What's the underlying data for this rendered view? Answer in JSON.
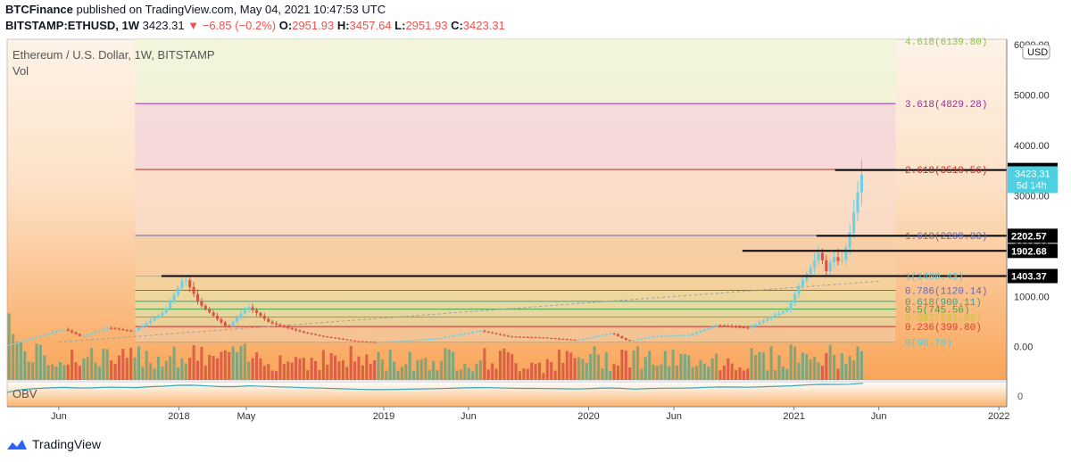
{
  "header": {
    "publisher": "BTCFinance",
    "published_text": "published on TradingView.com, May 04, 2021 10:47:53 UTC",
    "symbol": "BITSTAMP:ETHUSD, 1W",
    "last": "3423.31",
    "change": "−6.85 (−0.2%)",
    "o_label": "O:",
    "o_val": "2951.93",
    "h_label": "H:",
    "h_val": "3457.64",
    "l_label": "L:",
    "l_val": "2951.93",
    "c_label": "C:",
    "c_val": "3423.31"
  },
  "legend": {
    "title": "Ethereum / U.S. Dollar, 1W, BITSTAMP",
    "vol": "Vol",
    "obv": "OBV"
  },
  "currency_button": "USD",
  "brand": "TradingView",
  "colors": {
    "up": "#6ba583",
    "down": "#d75442",
    "up_candle": "#6cd1e8",
    "down_candle": "#d75442",
    "fib_cyan": "#4dd0e1",
    "obv": "#3aa7b8"
  },
  "chart_data": {
    "type": "candlestick",
    "title": "Ethereum / U.S. Dollar, 1W, BITSTAMP",
    "y_ticks": [
      "6000.00",
      "5000.00",
      "4000.00",
      "3000.00",
      "2000.00",
      "1000.00",
      "0.00"
    ],
    "y_range": [
      -200,
      6000
    ],
    "x_ticks": [
      {
        "label": "Jun",
        "date": "2017-06-01"
      },
      {
        "label": "2018",
        "date": "2018-01-01"
      },
      {
        "label": "May",
        "date": "2018-05-01"
      },
      {
        "label": "2019",
        "date": "2019-01-01"
      },
      {
        "label": "Jun",
        "date": "2019-06-01"
      },
      {
        "label": "2020",
        "date": "2020-01-01"
      },
      {
        "label": "Jun",
        "date": "2020-06-01"
      },
      {
        "label": "2021",
        "date": "2021-01-01"
      },
      {
        "label": "Jun",
        "date": "2021-06-01"
      },
      {
        "label": "2022",
        "date": "2022-01-01"
      }
    ],
    "x_range": [
      "2017-03-01",
      "2022-01-15"
    ],
    "fib_levels": [
      {
        "label": "4.618(6139.80)",
        "value": 6139.8
      },
      {
        "label": "3.618(4829.28)",
        "value": 4829.28
      },
      {
        "label": "2.618(3519.56)",
        "value": 3519.56
      },
      {
        "label": "1.618(2209.83)",
        "value": 2209.83
      },
      {
        "label": "1(1400.43)",
        "value": 1400.43
      },
      {
        "label": "0.786(1120.14)",
        "value": 1120.14
      },
      {
        "label": "0.618(900.11)",
        "value": 900.11
      },
      {
        "label": "0.5(745.56)",
        "value": 745.56
      },
      {
        "label": "0.382(591.02)",
        "value": 591.02
      },
      {
        "label": "0.236(399.80)",
        "value": 399.8
      },
      {
        "label": "0(90.70)",
        "value": 90.7
      }
    ],
    "fib_start": "2017-10-15",
    "fib_end": "2021-07-01",
    "horizontal_lines": [
      {
        "label": "3508.69",
        "value": 3508.69,
        "from": "2021-03-15"
      },
      {
        "label": "2202.57",
        "value": 2202.57,
        "from": "2021-02-10"
      },
      {
        "label": "1902.68",
        "value": 1902.68,
        "from": "2020-10-01"
      },
      {
        "label": "1403.37",
        "value": 1403.37,
        "from": "2017-12-01"
      }
    ],
    "last_price": {
      "value": 3423.31,
      "label": "3423.31",
      "countdown": "5d 14h"
    },
    "trend_line": [
      {
        "date": "2017-06-01",
        "value": 90
      },
      {
        "date": "2021-06-01",
        "value": 1300
      }
    ],
    "price_path": [
      {
        "date": "2017-03-01",
        "value": 20
      },
      {
        "date": "2017-06-15",
        "value": 350
      },
      {
        "date": "2017-07-15",
        "value": 200
      },
      {
        "date": "2017-09-01",
        "value": 380
      },
      {
        "date": "2017-10-15",
        "value": 300
      },
      {
        "date": "2017-12-10",
        "value": 700
      },
      {
        "date": "2018-01-14",
        "value": 1380
      },
      {
        "date": "2018-02-10",
        "value": 850
      },
      {
        "date": "2018-04-01",
        "value": 380
      },
      {
        "date": "2018-05-07",
        "value": 800
      },
      {
        "date": "2018-06-15",
        "value": 480
      },
      {
        "date": "2018-08-15",
        "value": 280
      },
      {
        "date": "2018-09-15",
        "value": 210
      },
      {
        "date": "2018-11-15",
        "value": 110
      },
      {
        "date": "2018-12-15",
        "value": 90
      },
      {
        "date": "2019-02-15",
        "value": 120
      },
      {
        "date": "2019-04-15",
        "value": 170
      },
      {
        "date": "2019-06-25",
        "value": 320
      },
      {
        "date": "2019-08-15",
        "value": 200
      },
      {
        "date": "2019-10-15",
        "value": 180
      },
      {
        "date": "2019-12-15",
        "value": 130
      },
      {
        "date": "2020-02-15",
        "value": 270
      },
      {
        "date": "2020-03-15",
        "value": 110
      },
      {
        "date": "2020-05-01",
        "value": 210
      },
      {
        "date": "2020-07-01",
        "value": 230
      },
      {
        "date": "2020-08-20",
        "value": 430
      },
      {
        "date": "2020-10-15",
        "value": 370
      },
      {
        "date": "2020-11-25",
        "value": 600
      },
      {
        "date": "2020-12-25",
        "value": 740
      },
      {
        "date": "2021-01-10",
        "value": 1150
      },
      {
        "date": "2021-02-05",
        "value": 1600
      },
      {
        "date": "2021-02-20",
        "value": 1930
      },
      {
        "date": "2021-03-01",
        "value": 1450
      },
      {
        "date": "2021-03-15",
        "value": 1800
      },
      {
        "date": "2021-03-29",
        "value": 1650
      },
      {
        "date": "2021-04-12",
        "value": 2150
      },
      {
        "date": "2021-04-26",
        "value": 2950
      },
      {
        "date": "2021-05-04",
        "value": 3423.31
      }
    ]
  }
}
